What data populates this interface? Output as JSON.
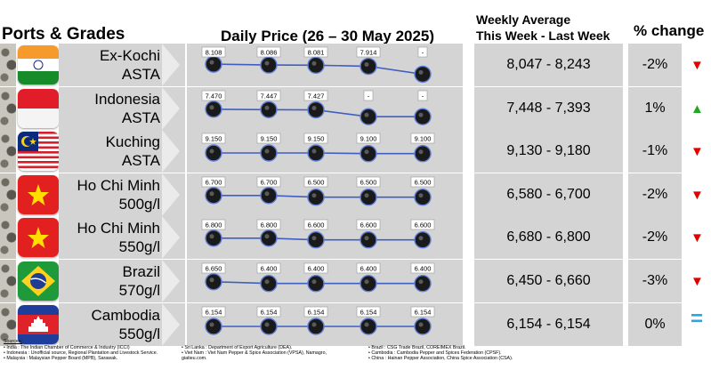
{
  "headers": {
    "ports": "Ports & Grades",
    "daily": "Daily Price (26 – 30 May 2025)",
    "weekly_line1": "Weekly Average",
    "weekly_line2": "This Week - Last Week",
    "pct": "% change"
  },
  "rows": [
    {
      "flag": "india",
      "name": "Ex-Kochi",
      "grade": "ASTA",
      "daily": [
        "8.108",
        "8.086",
        "8.081",
        "7.914",
        "-"
      ],
      "daily_level": [
        0.62,
        0.58,
        0.57,
        0.52,
        0.15
      ],
      "weekly": "8,047 - 8,243",
      "pct": "-2%",
      "direction": "down"
    },
    {
      "flag": "indonesia",
      "name": "Indonesia",
      "grade": "ASTA",
      "daily": [
        "7.470",
        "7.447",
        "7.427",
        "-",
        "-"
      ],
      "daily_level": [
        0.55,
        0.53,
        0.52,
        0.2,
        0.2
      ],
      "weekly": "7,448 - 7,393",
      "pct": "1%",
      "direction": "up"
    },
    {
      "flag": "malaysia",
      "name": "Kuching",
      "grade": "ASTA",
      "daily": [
        "9.150",
        "9.150",
        "9.150",
        "9.100",
        "9.100"
      ],
      "daily_level": [
        0.5,
        0.5,
        0.5,
        0.47,
        0.47
      ],
      "weekly": "9,130 - 9,180",
      "pct": "-1%",
      "direction": "down"
    },
    {
      "flag": "vietnam",
      "name": "Ho Chi Minh",
      "grade": "500g/l",
      "daily": [
        "6.700",
        "6.700",
        "6.500",
        "6.500",
        "6.500"
      ],
      "daily_level": [
        0.55,
        0.55,
        0.47,
        0.47,
        0.47
      ],
      "weekly": "6,580 - 6,700",
      "pct": "-2%",
      "direction": "down"
    },
    {
      "flag": "vietnam",
      "name": "Ho Chi Minh",
      "grade": "550g/l",
      "daily": [
        "6.800",
        "6.800",
        "6.600",
        "6.600",
        "6.600"
      ],
      "daily_level": [
        0.55,
        0.55,
        0.47,
        0.47,
        0.47
      ],
      "weekly": "6,680 - 6,800",
      "pct": "-2%",
      "direction": "down"
    },
    {
      "flag": "brazil",
      "name": "Brazil",
      "grade": "570g/l",
      "daily": [
        "6.650",
        "6.400",
        "6.400",
        "6.400",
        "6.400"
      ],
      "daily_level": [
        0.55,
        0.47,
        0.47,
        0.47,
        0.47
      ],
      "weekly": "6,450 - 6,660",
      "pct": "-3%",
      "direction": "down"
    },
    {
      "flag": "cambodia",
      "name": "Cambodia",
      "grade": "550g/l",
      "daily": [
        "6.154",
        "6.154",
        "6.154",
        "6.154",
        "6.154"
      ],
      "daily_level": [
        0.5,
        0.5,
        0.5,
        0.5,
        0.5
      ],
      "weekly": "6,154 - 6,154",
      "pct": "0%",
      "direction": "flat"
    }
  ],
  "arrows": {
    "down": "▼",
    "up": "▲",
    "flat": "="
  },
  "arrow_colors": {
    "down": "#e00000",
    "up": "#22a722",
    "flat": "#29a8e0"
  },
  "line_color": "#3f5fbf",
  "sources": {
    "title": "Sources:",
    "col1": [
      "•  India : The Indian Chamber of Commerce & Industry (ICCI)",
      "•  Indonesia : Unofficial source, Regional Plantation and Livestock Service.",
      "•  Malaysia : Malaysian Pepper Board (MPB), Sarawak."
    ],
    "col2": [
      "•  Sri Lanka : Department of Export Agriculture (DEA).",
      "•  Viet Nam : Viet Nam Pepper & Spice Association (VPSA), Namagro,",
      "   giatieu.com."
    ],
    "col3": [
      "•  Brazil : CSG Trade Brazil, COREIMEX Brazil.",
      "•  Cambodia : Cambodia Pepper and Spices Federation (CPSF).",
      "•  China : Hainan Pepper Association, China Spice Association (CSA)."
    ]
  }
}
